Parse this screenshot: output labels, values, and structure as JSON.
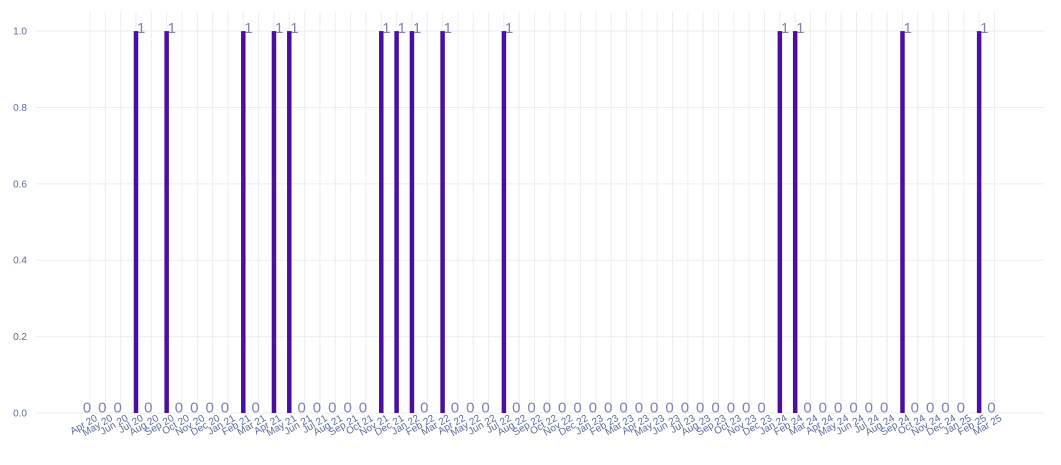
{
  "chart_data": {
    "type": "bar",
    "title": "",
    "xlabel": "",
    "ylabel": "",
    "ylim": [
      0,
      1.05
    ],
    "yticks": [
      "0.0",
      "0.2",
      "0.4",
      "0.6",
      "0.8",
      "1.0"
    ],
    "grid": true,
    "bar_color": "#4b0fa0",
    "categories": [
      "Apr 20",
      "May 20",
      "Jun 20",
      "Jul 20",
      "Aug 20",
      "Sep 20",
      "Oct 20",
      "Nov 20",
      "Dec 20",
      "Jan 21",
      "Feb 21",
      "Mar 21",
      "Apr 21",
      "May 21",
      "Jun 21",
      "Jul 21",
      "Aug 21",
      "Sep 21",
      "Oct 21",
      "Nov 21",
      "Dec 21",
      "Jan 22",
      "Feb 22",
      "Mar 22",
      "Apr 22",
      "May 22",
      "Jun 22",
      "Jul 22",
      "Aug 22",
      "Sep 22",
      "Oct 22",
      "Nov 22",
      "Dec 22",
      "Jan 23",
      "Feb 23",
      "Mar 23",
      "Apr 23",
      "May 23",
      "Jun 23",
      "Jul 23",
      "Aug 23",
      "Sep 23",
      "Oct 23",
      "Nov 23",
      "Dec 23",
      "Jan 24",
      "Feb 24",
      "Mar 24",
      "Apr 24",
      "May 24",
      "Jun 24",
      "Jul 24",
      "Aug 24",
      "Sep 24",
      "Oct 24",
      "Nov 24",
      "Dec 24",
      "Jan 25",
      "Feb 25",
      "Mar 25"
    ],
    "values": [
      0,
      0,
      0,
      1,
      0,
      1,
      0,
      0,
      0,
      0,
      1,
      0,
      1,
      1,
      0,
      0,
      0,
      0,
      0,
      1,
      1,
      1,
      0,
      1,
      0,
      0,
      0,
      1,
      0,
      0,
      0,
      0,
      0,
      0,
      0,
      0,
      0,
      0,
      0,
      0,
      0,
      0,
      0,
      0,
      0,
      1,
      1,
      0,
      0,
      0,
      0,
      0,
      0,
      1,
      0,
      0,
      0,
      0,
      1,
      0
    ],
    "data_labels": [
      "0",
      "0",
      "0",
      "1",
      "0",
      "1",
      "0",
      "0",
      "0",
      "0",
      "1",
      "0",
      "1",
      "1",
      "0",
      "0",
      "0",
      "0",
      "0",
      "1",
      "1",
      "1",
      "0",
      "1",
      "0",
      "0",
      "0",
      "1",
      "0",
      "0",
      "0",
      "0",
      "0",
      "0",
      "0",
      "0",
      "0",
      "0",
      "0",
      "0",
      "0",
      "0",
      "0",
      "0",
      "0",
      "1",
      "1",
      "0",
      "0",
      "0",
      "0",
      "0",
      "0",
      "1",
      "0",
      "0",
      "0",
      "0",
      "1",
      "0"
    ]
  }
}
